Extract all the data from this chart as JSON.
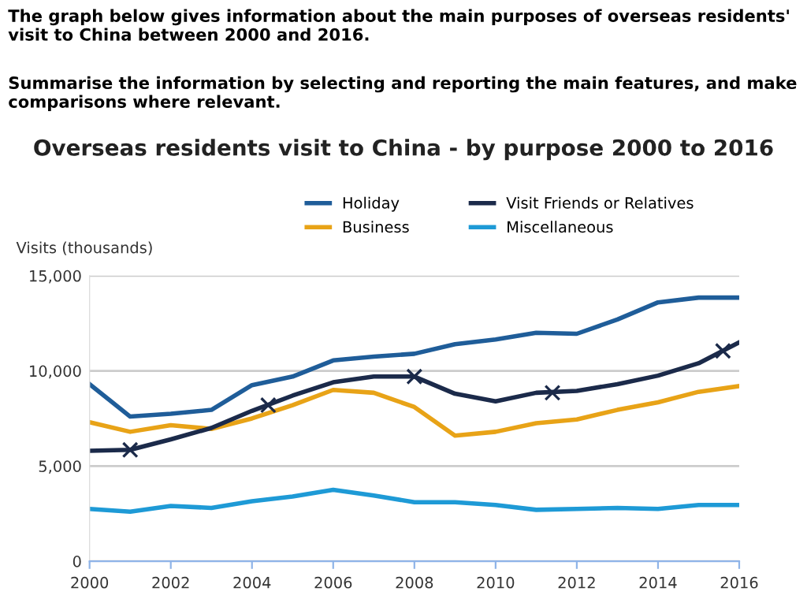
{
  "chart_data": {
    "type": "line",
    "title": "Overseas residents visit to China - by purpose 2000 to 2016",
    "ylabel": "Visits (thousands)",
    "annotations": [
      "The graph below gives information about the main purposes of overseas residents' visit to China between 2000 and 2016.",
      "Summarise the information by selecting and reporting the main features, and make comparisons where relevant."
    ],
    "x": [
      2000,
      2001,
      2002,
      2003,
      2004,
      2005,
      2006,
      2007,
      2008,
      2009,
      2010,
      2011,
      2012,
      2013,
      2014,
      2015,
      2016
    ],
    "series": [
      {
        "name": "Holiday",
        "color": "#1f5d99",
        "values": [
          9300,
          7600,
          7750,
          7950,
          9250,
          9700,
          10550,
          10750,
          10900,
          11400,
          11650,
          12000,
          11950,
          12700,
          13600,
          13850,
          13850
        ]
      },
      {
        "name": "Business",
        "color": "#e8a317",
        "values": [
          7300,
          6800,
          7150,
          6950,
          7500,
          8200,
          9000,
          8850,
          8100,
          6600,
          6800,
          7250,
          7450,
          7950,
          8350,
          8900,
          9200
        ]
      },
      {
        "name": "Visit Friends or Relatives",
        "color": "#1b2a4a",
        "values": [
          5800,
          5850,
          6400,
          7000,
          7900,
          8700,
          9400,
          9700,
          9700,
          8800,
          8400,
          8850,
          8950,
          9300,
          9750,
          10400,
          11500
        ]
      },
      {
        "name": "Miscellaneous",
        "color": "#1e9ad6",
        "values": [
          2750,
          2600,
          2900,
          2800,
          3150,
          3400,
          3750,
          3450,
          3100,
          3100,
          2950,
          2700,
          2750,
          2800,
          2750,
          2950,
          2950
        ]
      },
      {
        "type": "scatter",
        "marker": "cross",
        "color": "#1b2a4a",
        "x": [
          2001,
          2004.4,
          2008,
          2011.4,
          2015.6
        ],
        "values": [
          5850,
          8200,
          9700,
          8850,
          11050
        ]
      }
    ],
    "xlim": [
      2000,
      2016
    ],
    "xticks": [
      2000,
      2002,
      2004,
      2006,
      2008,
      2010,
      2012,
      2014,
      2016
    ],
    "ylim": [
      0,
      15000
    ],
    "yticks": [
      0,
      {
        "value": 5000,
        "label": "5,000"
      },
      {
        "value": 10000,
        "label": "10,000"
      },
      {
        "value": 15000,
        "label": "15,000"
      }
    ],
    "grid": "y",
    "legend": "top",
    "marker": "none",
    "line_style": "solid"
  }
}
